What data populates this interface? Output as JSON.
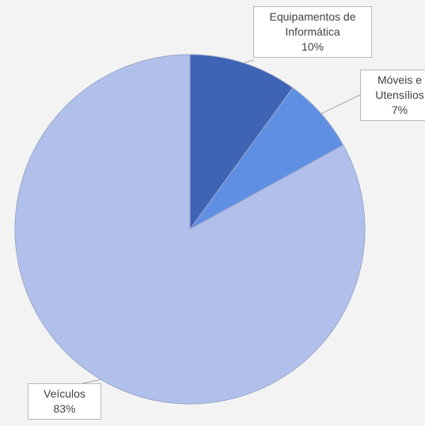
{
  "chart_data": {
    "type": "pie",
    "categories": [
      "Equipamentos de Informática",
      "Móveis e Utensílios",
      "Veículos"
    ],
    "values": [
      10,
      7,
      83
    ],
    "value_labels": [
      "10%",
      "7%",
      "83%"
    ],
    "colors": [
      "#3f63b5",
      "#5f8fe3",
      "#b1c0ea"
    ]
  }
}
